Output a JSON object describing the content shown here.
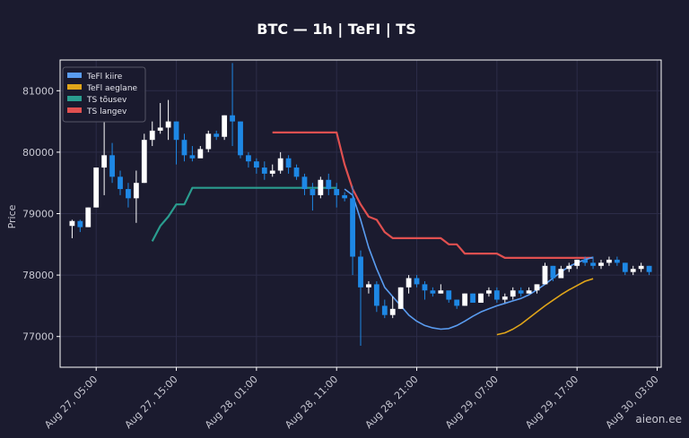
{
  "chart_data": {
    "type": "candlestick",
    "title": "BTC — 1h  |  TeFI  |  TS",
    "ylabel": "Price",
    "xlabel": "",
    "ylim": [
      76500,
      81500
    ],
    "yticks": [
      77000,
      78000,
      79000,
      80000,
      81000
    ],
    "x_start": "2025-08-27T02:00",
    "xlim_hours": [
      -1.5,
      73.5
    ],
    "xticks": [
      {
        "label": "Aug 27, 05:00",
        "hour": 3
      },
      {
        "label": "Aug 27, 15:00",
        "hour": 13
      },
      {
        "label": "Aug 28, 01:00",
        "hour": 23
      },
      {
        "label": "Aug 28, 11:00",
        "hour": 33
      },
      {
        "label": "Aug 28, 21:00",
        "hour": 43
      },
      {
        "label": "Aug 29, 07:00",
        "hour": 53
      },
      {
        "label": "Aug 29, 17:00",
        "hour": 63
      },
      {
        "label": "Aug 30, 03:00",
        "hour": 73
      }
    ],
    "grid": true,
    "legend_position": "top-left",
    "colors": {
      "background": "#1b1b2f",
      "up_candle": "#ffffff",
      "down_candle": "#1e88e5",
      "tefi_fast": "#5a9cf0",
      "tefi_slow": "#e0a51a",
      "ts_up": "#2a9d8f",
      "ts_down": "#e05050"
    },
    "legend": [
      {
        "key": "fast",
        "name": "TeFl kiire",
        "color": "#5a9cf0"
      },
      {
        "key": "slow",
        "name": "TeFl aeglane",
        "color": "#e0a51a"
      },
      {
        "key": "tsup",
        "name": "TS tõusev",
        "color": "#2a9d8f"
      },
      {
        "key": "tsdown",
        "name": "TS langev",
        "color": "#e05050"
      }
    ],
    "candles": [
      [
        78800,
        78880,
        78600,
        78900
      ],
      [
        78880,
        78780,
        78700,
        78900
      ],
      [
        78780,
        79100,
        78780,
        79100
      ],
      [
        79100,
        79750,
        79100,
        79750
      ],
      [
        79750,
        79950,
        79300,
        80500
      ],
      [
        79950,
        79600,
        79500,
        80150
      ],
      [
        79600,
        79400,
        79300,
        79700
      ],
      [
        79400,
        79250,
        79100,
        79500
      ],
      [
        79250,
        79500,
        78850,
        79700
      ],
      [
        79500,
        80200,
        79500,
        80300
      ],
      [
        80200,
        80350,
        80100,
        80500
      ],
      [
        80350,
        80400,
        80300,
        80800
      ],
      [
        80400,
        80500,
        80200,
        80850
      ],
      [
        80500,
        80200,
        79800,
        80500
      ],
      [
        80200,
        79950,
        79850,
        80300
      ],
      [
        79950,
        79900,
        79850,
        80100
      ],
      [
        79900,
        80050,
        79950,
        80100
      ],
      [
        80050,
        80300,
        80000,
        80350
      ],
      [
        80300,
        80250,
        80200,
        80350
      ],
      [
        80250,
        80600,
        80200,
        80600
      ],
      [
        80600,
        80500,
        80100,
        81450
      ],
      [
        80500,
        79950,
        79900,
        80500
      ],
      [
        79950,
        79850,
        79750,
        80000
      ],
      [
        79850,
        79750,
        79650,
        79900
      ],
      [
        79750,
        79650,
        79550,
        79850
      ],
      [
        79650,
        79700,
        79600,
        79800
      ],
      [
        79700,
        79900,
        79650,
        80000
      ],
      [
        79900,
        79750,
        79650,
        79950
      ],
      [
        79750,
        79600,
        79550,
        79800
      ],
      [
        79600,
        79400,
        79300,
        79650
      ],
      [
        79400,
        79300,
        79050,
        79500
      ],
      [
        79300,
        79550,
        79250,
        79600
      ],
      [
        79550,
        79400,
        79300,
        79650
      ],
      [
        79400,
        79300,
        79100,
        79500
      ],
      [
        79300,
        79250,
        79200,
        79350
      ],
      [
        79250,
        78300,
        78000,
        79450
      ],
      [
        78300,
        77800,
        76850,
        78400
      ],
      [
        77800,
        77850,
        77700,
        77900
      ],
      [
        77850,
        77500,
        77400,
        77900
      ],
      [
        77500,
        77350,
        77300,
        77600
      ],
      [
        77350,
        77450,
        77300,
        77650
      ],
      [
        77450,
        77800,
        77450,
        77800
      ],
      [
        77800,
        77950,
        77700,
        78000
      ],
      [
        77950,
        77850,
        77800,
        78000
      ],
      [
        77850,
        77750,
        77600,
        77900
      ],
      [
        77750,
        77700,
        77650,
        77800
      ],
      [
        77700,
        77750,
        77700,
        77850
      ],
      [
        77750,
        77600,
        77550,
        77700
      ],
      [
        77600,
        77500,
        77450,
        77600
      ],
      [
        77500,
        77700,
        77500,
        77700
      ],
      [
        77700,
        77550,
        77550,
        77700
      ],
      [
        77550,
        77700,
        77550,
        77700
      ],
      [
        77700,
        77750,
        77650,
        77800
      ],
      [
        77750,
        77600,
        77550,
        77800
      ],
      [
        77600,
        77650,
        77550,
        77700
      ],
      [
        77650,
        77750,
        77600,
        77800
      ],
      [
        77750,
        77700,
        77650,
        77800
      ],
      [
        77700,
        77750,
        77700,
        77800
      ],
      [
        77750,
        77850,
        77700,
        77850
      ],
      [
        77850,
        78150,
        77850,
        78200
      ],
      [
        78150,
        77950,
        77900,
        78150
      ],
      [
        77950,
        78100,
        77950,
        78150
      ],
      [
        78100,
        78150,
        78050,
        78200
      ],
      [
        78150,
        78250,
        78100,
        78250
      ],
      [
        78250,
        78200,
        78150,
        78300
      ],
      [
        78200,
        78150,
        78100,
        78300
      ],
      [
        78150,
        78200,
        78100,
        78250
      ],
      [
        78200,
        78250,
        78150,
        78300
      ],
      [
        78250,
        78200,
        78150,
        78300
      ],
      [
        78200,
        78050,
        78000,
        78200
      ],
      [
        78050,
        78100,
        78000,
        78150
      ],
      [
        78100,
        78150,
        78050,
        78200
      ],
      [
        78150,
        78050,
        78000,
        78150
      ]
    ],
    "lines": {
      "fast": [
        [
          34,
          79400
        ],
        [
          35,
          79300
        ],
        [
          36,
          78900
        ],
        [
          37,
          78450
        ],
        [
          38,
          78100
        ],
        [
          39,
          77800
        ],
        [
          40,
          77650
        ],
        [
          41,
          77500
        ],
        [
          42,
          77350
        ],
        [
          43,
          77250
        ],
        [
          44,
          77180
        ],
        [
          45,
          77140
        ],
        [
          46,
          77120
        ],
        [
          47,
          77130
        ],
        [
          48,
          77180
        ],
        [
          49,
          77250
        ],
        [
          50,
          77330
        ],
        [
          51,
          77400
        ],
        [
          52,
          77450
        ],
        [
          53,
          77500
        ],
        [
          54,
          77540
        ],
        [
          55,
          77580
        ],
        [
          56,
          77620
        ],
        [
          57,
          77680
        ],
        [
          58,
          77760
        ],
        [
          59,
          77850
        ],
        [
          60,
          77950
        ],
        [
          61,
          78050
        ],
        [
          62,
          78140
        ],
        [
          63,
          78200
        ],
        [
          64,
          78250
        ],
        [
          65,
          78290
        ]
      ],
      "slow": [
        [
          53,
          77030
        ],
        [
          54,
          77060
        ],
        [
          55,
          77120
        ],
        [
          56,
          77200
        ],
        [
          57,
          77300
        ],
        [
          58,
          77400
        ],
        [
          59,
          77500
        ],
        [
          60,
          77590
        ],
        [
          61,
          77680
        ],
        [
          62,
          77760
        ],
        [
          63,
          77830
        ],
        [
          64,
          77900
        ],
        [
          65,
          77940
        ]
      ],
      "tsup": [
        [
          10,
          78550
        ],
        [
          11,
          78800
        ],
        [
          12,
          78950
        ],
        [
          13,
          79150
        ],
        [
          14,
          79150
        ],
        [
          15,
          79420
        ],
        [
          16,
          79420
        ],
        [
          17,
          79420
        ],
        [
          18,
          79420
        ],
        [
          19,
          79420
        ],
        [
          20,
          79420
        ],
        [
          21,
          79420
        ],
        [
          22,
          79420
        ],
        [
          23,
          79420
        ],
        [
          24,
          79420
        ],
        [
          25,
          79420
        ],
        [
          26,
          79420
        ],
        [
          27,
          79420
        ],
        [
          28,
          79420
        ],
        [
          29,
          79420
        ],
        [
          30,
          79420
        ],
        [
          31,
          79420
        ],
        [
          32,
          79420
        ],
        [
          33,
          79420
        ]
      ],
      "tsdown": [
        [
          25,
          80320
        ],
        [
          33,
          80320
        ],
        [
          34,
          79800
        ],
        [
          35,
          79400
        ],
        [
          36,
          79150
        ],
        [
          37,
          78950
        ],
        [
          38,
          78900
        ],
        [
          39,
          78700
        ],
        [
          40,
          78600
        ],
        [
          41,
          78600
        ],
        [
          46,
          78600
        ],
        [
          47,
          78500
        ],
        [
          48,
          78500
        ],
        [
          49,
          78350
        ],
        [
          53,
          78350
        ],
        [
          54,
          78280
        ],
        [
          59,
          78280
        ],
        [
          65,
          78280
        ]
      ]
    }
  },
  "watermark": "aieon.ee"
}
